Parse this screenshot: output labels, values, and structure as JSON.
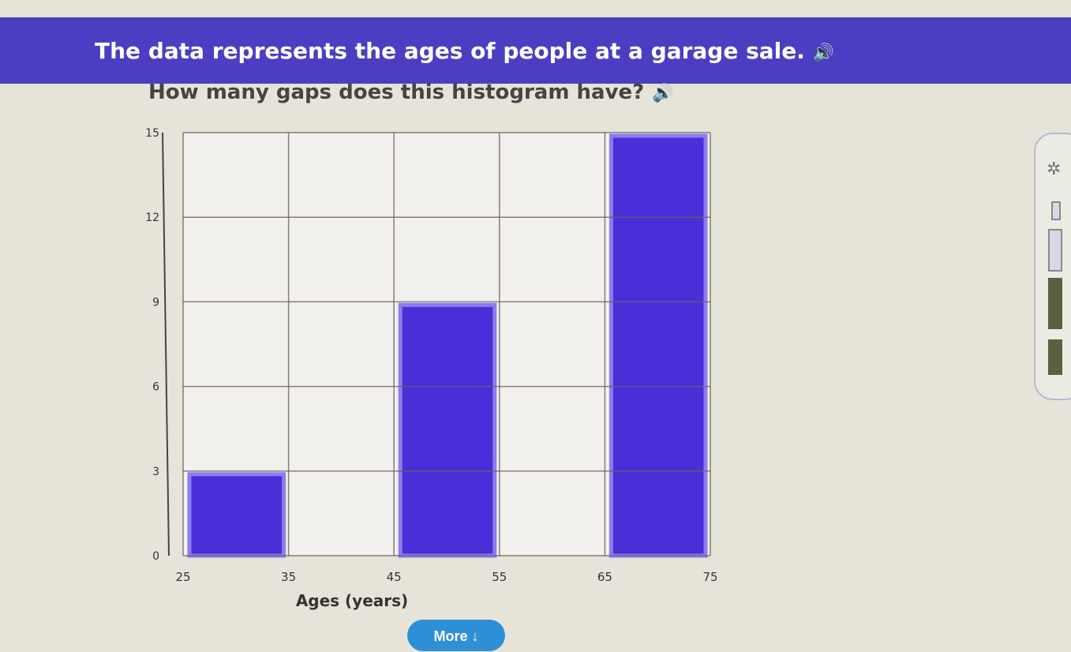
{
  "header": {
    "title": "The data represents the ages of people at a garage sale.",
    "title_icon": "speaker-icon"
  },
  "question": {
    "text": "How many gaps does this histogram have?",
    "icon": "speaker-icon"
  },
  "more_button": {
    "label": "More ↓"
  },
  "side_toolbar": {
    "icons": [
      "settings-gear-icon",
      "tool-slot-1",
      "tool-slot-2",
      "tool-slot-3",
      "tool-slot-4"
    ]
  },
  "colors": {
    "header": "#4a3fc2",
    "bar_fill": "#4a2fd8",
    "bar_border": "#8b7cf0",
    "button": "#2f8fd6"
  },
  "chart_data": {
    "type": "bar",
    "title": "",
    "xlabel": "Ages (years)",
    "ylabel": "",
    "x_ticks": [
      25,
      35,
      45,
      55,
      65,
      75
    ],
    "y_ticks": [
      0,
      3,
      6,
      9,
      12,
      15
    ],
    "bins": [
      [
        25,
        35
      ],
      [
        35,
        45
      ],
      [
        45,
        55
      ],
      [
        55,
        65
      ],
      [
        65,
        75
      ]
    ],
    "values": [
      3,
      0,
      9,
      0,
      15
    ],
    "xlim": [
      25,
      75
    ],
    "ylim": [
      0,
      15
    ],
    "grid": true
  }
}
